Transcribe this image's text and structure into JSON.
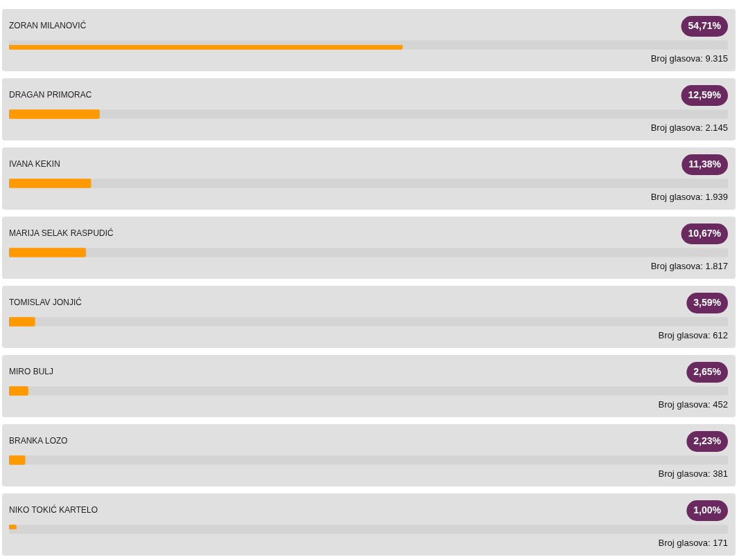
{
  "chart_data": {
    "type": "bar",
    "orientation": "horizontal",
    "categories": [
      "ZORAN MILANOVIĆ",
      "DRAGAN PRIMORAC",
      "IVANA KEKIN",
      "MARIJA SELAK RASPUDIĆ",
      "TOMISLAV JONJIĆ",
      "MIRO BULJ",
      "BRANKA LOZO",
      "NIKO TOKIĆ KARTELO"
    ],
    "values": [
      54.71,
      12.59,
      11.38,
      10.67,
      3.59,
      2.65,
      2.23,
      1.0
    ],
    "value_labels": [
      "54,71%",
      "12,59%",
      "11,38%",
      "10,67%",
      "3,59%",
      "2,65%",
      "2,23%",
      "1,00%"
    ],
    "color": "#ff9900",
    "xlim": [
      0,
      100
    ],
    "tick_labels": false,
    "grid": false,
    "legend": false,
    "annotations": [
      "Broj glasova: 9.315",
      "Broj glasova: 2.145",
      "Broj glasova: 1.939",
      "Broj glasova: 1.817",
      "Broj glasova: 612",
      "Broj glasova: 452",
      "Broj glasova: 381",
      "Broj glasova: 171"
    ]
  }
}
